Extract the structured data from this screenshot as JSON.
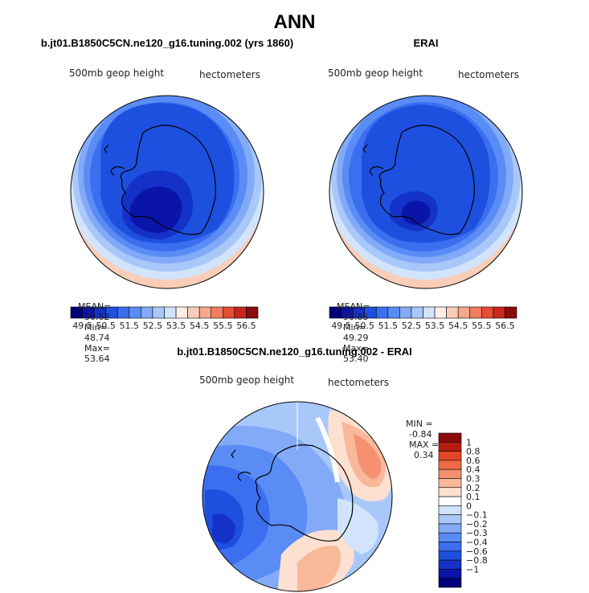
{
  "figure": {
    "main_title": "ANN",
    "diff_title": "b.jt01.B1850C5CN.ne120_g16.tuning.002 - ERAI"
  },
  "palette": {
    "abs_colors": [
      "#00007a",
      "#0a14a8",
      "#1432c8",
      "#1e50e0",
      "#3c6ef0",
      "#5a8cf5",
      "#82aaf7",
      "#a8c8fa",
      "#d2e4fc",
      "#fdeee4",
      "#f9cdb7",
      "#f5a88a",
      "#f07e5e",
      "#e64e32",
      "#c8281c",
      "#8c0a0a"
    ],
    "diff_colors": [
      "#00007a",
      "#0a14a8",
      "#1432c8",
      "#1e50e0",
      "#3c6ef0",
      "#5a8cf5",
      "#82aaf7",
      "#a8c8fa",
      "#d2e4fc",
      "#ffffff",
      "#fde0d0",
      "#f9b89a",
      "#f59070",
      "#f06a48",
      "#e64628",
      "#b81e10",
      "#8c0a0a"
    ]
  },
  "panels": [
    {
      "title": "b.jt01.B1850C5CN.ne120_g16.tuning.002 (yrs 1860)",
      "left_label": "500mb geop height",
      "right_label": "hectometers",
      "stats": {
        "mean_label": "MEAN=",
        "mean": "50.62",
        "min_label": "Min=",
        "min": "48.74",
        "max_label": "Max=",
        "max": "53.64"
      },
      "colorbar_labels": [
        "49.5",
        "50.5",
        "51.5",
        "52.5",
        "53.5",
        "54.5",
        "55.5",
        "56.5"
      ]
    },
    {
      "title": "ERAI",
      "left_label": "500mb geop height",
      "right_label": "hectometers",
      "stats": {
        "mean_label": "MEAN=",
        "mean": "50.85",
        "min_label": "Min=",
        "min": "49.29",
        "max_label": "Max=",
        "max": "53.40"
      },
      "colorbar_labels": [
        "49.5",
        "50.5",
        "51.5",
        "52.5",
        "53.5",
        "54.5",
        "55.5",
        "56.5"
      ]
    }
  ],
  "diff": {
    "left_label": "500mb geop height",
    "right_label": "hectometers",
    "min_label": "MIN =",
    "min": "-0.84",
    "max_label": "MAX =",
    "max": "0.34",
    "colorbar_labels": [
      "1",
      "0.8",
      "0.6",
      "0.4",
      "0.3",
      "0.2",
      "0.1",
      "0",
      "−0.1",
      "−0.2",
      "−0.3",
      "−0.4",
      "−0.6",
      "−0.8",
      "−1"
    ]
  },
  "chart_data": [
    {
      "type": "heatmap",
      "title": "b.jt01.B1850C5CN.ne120_g16.tuning.002 (yrs 1860)",
      "variable": "500mb geop height",
      "units": "hectometers",
      "mean": 50.62,
      "min": 48.74,
      "max": 53.64,
      "contour_levels": [
        49.5,
        50.5,
        51.5,
        52.5,
        53.5,
        54.5,
        55.5,
        56.5
      ]
    },
    {
      "type": "heatmap",
      "title": "ERAI",
      "variable": "500mb geop height",
      "units": "hectometers",
      "mean": 50.85,
      "min": 49.29,
      "max": 53.4,
      "contour_levels": [
        49.5,
        50.5,
        51.5,
        52.5,
        53.5,
        54.5,
        55.5,
        56.5
      ]
    },
    {
      "type": "heatmap",
      "title": "b.jt01.B1850C5CN.ne120_g16.tuning.002 - ERAI",
      "variable": "500mb geop height",
      "units": "hectometers",
      "min": -0.84,
      "max": 0.34,
      "contour_levels": [
        -1,
        -0.8,
        -0.6,
        -0.4,
        -0.3,
        -0.2,
        -0.1,
        0,
        0.1,
        0.2,
        0.3,
        0.4,
        0.6,
        0.8,
        1
      ]
    }
  ]
}
